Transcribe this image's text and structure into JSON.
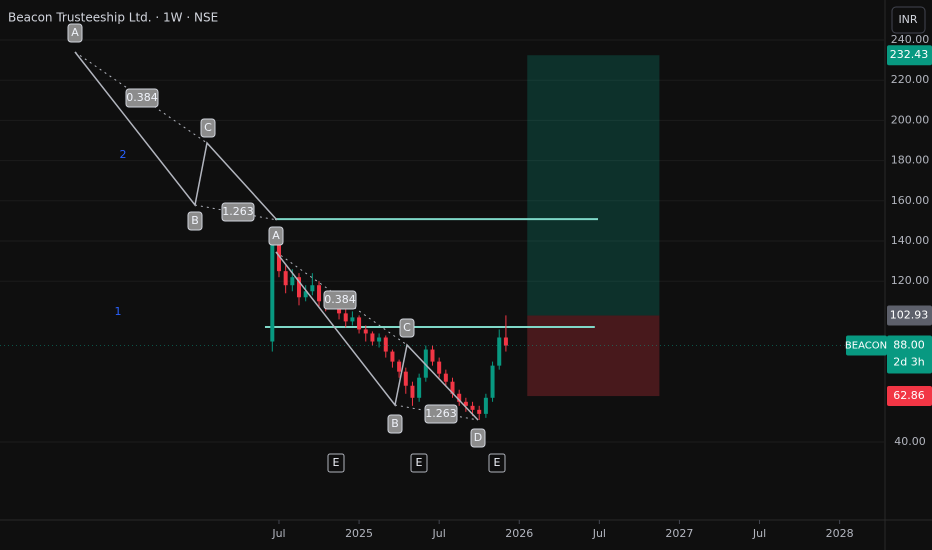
{
  "header": {
    "title": "Beacon Trusteeship Ltd. · 1W · NSE",
    "currency": "INR"
  },
  "chart_data": {
    "type": "candlestick",
    "x": [
      5.5,
      6,
      6.5,
      7,
      7.5,
      8,
      8.5,
      9,
      9.5,
      10,
      10.5,
      11,
      11.5,
      12,
      12.5,
      13,
      13.5,
      14,
      14.5,
      15,
      15.5,
      16,
      16.5,
      17,
      17.5,
      18,
      18.5,
      19,
      19.5,
      20,
      20.5,
      21,
      21.5,
      22,
      22.5,
      23
    ],
    "open": [
      90,
      138,
      125,
      118,
      122,
      112,
      115,
      118,
      110,
      108,
      112,
      104,
      100,
      102,
      96,
      94,
      90,
      92,
      85,
      80,
      75,
      68,
      62,
      72,
      86,
      80,
      74,
      70,
      64,
      60,
      58,
      56,
      54,
      62,
      78,
      92
    ],
    "high": [
      146,
      140,
      128,
      126,
      124,
      118,
      124,
      120,
      114,
      114,
      114,
      106,
      105,
      103,
      98,
      95,
      94,
      93,
      86,
      81,
      77,
      70,
      74,
      88,
      88,
      82,
      76,
      72,
      66,
      62,
      60,
      58,
      64,
      80,
      96,
      103
    ],
    "low": [
      85,
      122,
      114,
      115,
      108,
      110,
      113,
      107,
      105,
      106,
      101,
      97,
      98,
      94,
      90,
      88,
      87,
      82,
      77,
      72,
      64,
      58,
      60,
      70,
      78,
      72,
      68,
      62,
      58,
      55,
      53,
      51,
      52,
      60,
      76,
      85
    ],
    "close": [
      138,
      125,
      118,
      122,
      112,
      115,
      118,
      110,
      108,
      112,
      104,
      100,
      102,
      96,
      94,
      90,
      92,
      85,
      80,
      75,
      68,
      62,
      72,
      86,
      80,
      74,
      70,
      64,
      60,
      58,
      56,
      54,
      62,
      78,
      92,
      88
    ],
    "up_color": "#089981",
    "down_color": "#f23645",
    "xlim": [
      -14.9,
      51.4
    ],
    "ylim": [
      1.2,
      259.9
    ],
    "xticks": [
      {
        "value": 6,
        "label": "Jul"
      },
      {
        "value": 12,
        "label": "2025"
      },
      {
        "value": 18,
        "label": "Jul"
      },
      {
        "value": 24,
        "label": "2026"
      },
      {
        "value": 30,
        "label": "Jul"
      },
      {
        "value": 36,
        "label": "2027"
      },
      {
        "value": 42,
        "label": "Jul"
      },
      {
        "value": 48,
        "label": "2028"
      }
    ],
    "yticks": [
      {
        "value": 240,
        "label": "240.00"
      },
      {
        "value": 220,
        "label": "220.00"
      },
      {
        "value": 200,
        "label": "200.00"
      },
      {
        "value": 180,
        "label": "180.00"
      },
      {
        "value": 160,
        "label": "160.00"
      },
      {
        "value": 140,
        "label": "140.00"
      },
      {
        "value": 120,
        "label": "120.00"
      },
      {
        "value": 40,
        "label": "40.00"
      }
    ],
    "position": {
      "target": 232.43,
      "entry": 102.93,
      "stop": 62.86,
      "x": [
        24.6,
        34.5
      ]
    },
    "levels": [
      {
        "price": 150.9,
        "x": [
          5.7,
          29.9
        ]
      },
      {
        "price": 97.2,
        "x": [
          4.95,
          29.66
        ]
      }
    ],
    "price_labels": [
      {
        "value": 232.43,
        "color": "#089981"
      },
      {
        "value": 102.93,
        "color": "#5d606b"
      },
      {
        "value": 62.86,
        "color": "#f23645"
      }
    ],
    "last": {
      "symbol": "BEACON",
      "price": {
        "value": 88,
        "label": "88.00"
      },
      "countdown": "2d 3h",
      "color": "#089981"
    },
    "annotations": [
      "A",
      "0.384",
      "C",
      "B",
      "1.263",
      "2",
      "1",
      "A",
      "0.384",
      "C",
      "B",
      "1.263",
      "D",
      "E",
      "E",
      "E"
    ]
  }
}
